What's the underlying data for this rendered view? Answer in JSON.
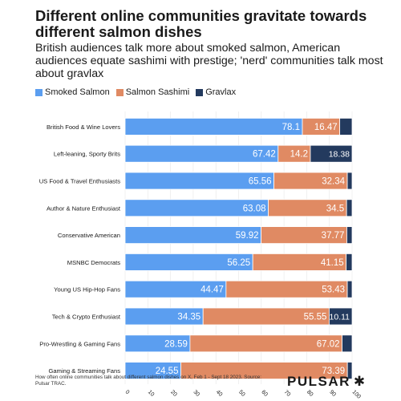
{
  "title": "Different online communities gravitate towards different salmon dishes",
  "subtitle": "British audiences talk more about smoked salmon, American audiences equate sashimi with prestige; 'nerd' communities talk most about gravlax",
  "footnote": "How often online communities talk about different salmon dishes on X, Feb 1 - Sept 18 2023. Source: Pulsar TRAC.",
  "brand": {
    "name": "PULSAR",
    "mark": "✱"
  },
  "colors": {
    "smoked": "#5b9ef0",
    "sashimi": "#e08a63",
    "gravlax": "#233a5e",
    "gridline": "#e6e6e6",
    "label_light": "#ffffff",
    "label_dark": "#1a1a1a"
  },
  "chart_data": {
    "type": "bar",
    "orientation": "horizontal",
    "stacked": true,
    "title": "Different online communities gravitate towards different salmon dishes",
    "subtitle": "British audiences talk more about smoked salmon, American audiences equate sashimi with prestige; 'nerd' communities talk most about gravlax",
    "xlim": [
      0,
      100
    ],
    "xticks": [
      0,
      10,
      20,
      30,
      40,
      50,
      60,
      70,
      80,
      90,
      100
    ],
    "legend_position": "top-left",
    "categories": [
      "British Food & Wine Lovers",
      "Left-leaning, Sporty Brits",
      "US Food & Travel Enthusiasts",
      "Author & Nature Enthusiast",
      "Conservative American",
      "MSNBC Democrats",
      "Young US Hip-Hop Fans",
      "Tech & Crypto Enthusiast",
      "Pro-Wrestling & Gaming Fans",
      "Gaming & Streaming Fans"
    ],
    "series": [
      {
        "name": "Smoked Salmon",
        "values": [
          78.1,
          67.42,
          65.56,
          63.08,
          59.92,
          56.25,
          44.47,
          34.35,
          28.59,
          24.55
        ],
        "labels": [
          "78.1",
          "67.42",
          "65.56",
          "63.08",
          "59.92",
          "56.25",
          "44.47",
          "34.35",
          "28.59",
          "24.55"
        ]
      },
      {
        "name": "Salmon Sashimi",
        "values": [
          16.47,
          14.2,
          32.34,
          34.5,
          37.77,
          41.15,
          53.43,
          55.55,
          67.02,
          73.39
        ],
        "labels": [
          "16.47",
          "14.2",
          "32.34",
          "34.5",
          "37.77",
          "41.15",
          "53.43",
          "55.55",
          "67.02",
          "73.39"
        ]
      },
      {
        "name": "Gravlax",
        "values": [
          5.43,
          18.38,
          2.1,
          2.42,
          2.31,
          2.6,
          2.1,
          10.11,
          4.39,
          2.06
        ],
        "labels": [
          "",
          "18.38",
          "",
          "",
          "",
          "",
          "",
          "10.11",
          "",
          ""
        ]
      }
    ]
  }
}
